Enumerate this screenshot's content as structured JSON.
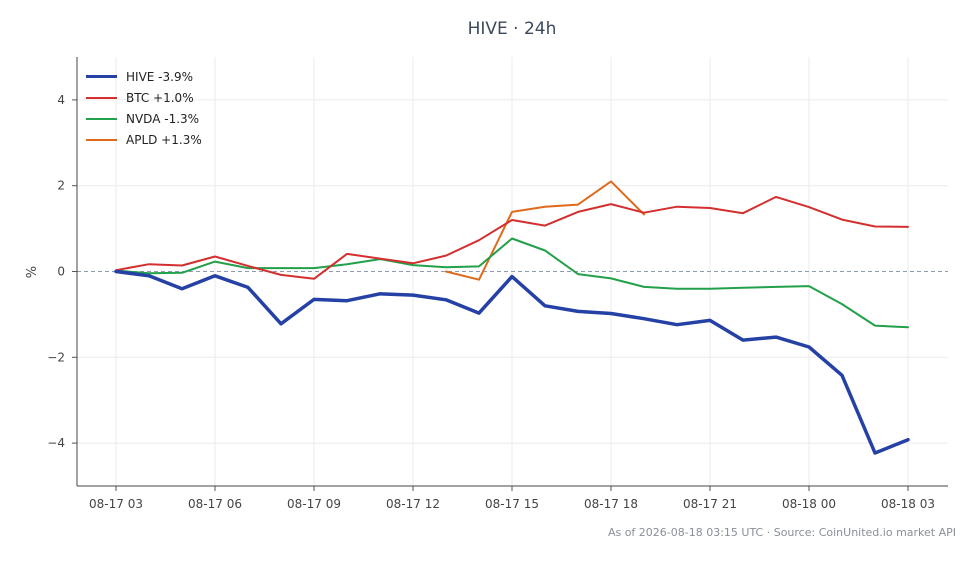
{
  "title": "HIVE · 24h",
  "footer": "As of 2026-08-18 03:15 UTC · Source: CoinUnited.io market API",
  "chart_data": {
    "type": "line",
    "title": "HIVE · 24h",
    "xlabel": "",
    "ylabel": "%",
    "x": [
      "08-17 03",
      "08-17 04",
      "08-17 05",
      "08-17 06",
      "08-17 07",
      "08-17 08",
      "08-17 09",
      "08-17 10",
      "08-17 11",
      "08-17 12",
      "08-17 13",
      "08-17 14",
      "08-17 15",
      "08-17 16",
      "08-17 17",
      "08-17 18",
      "08-17 19",
      "08-17 20",
      "08-17 21",
      "08-17 22",
      "08-17 23",
      "08-18 00",
      "08-18 01",
      "08-18 02",
      "08-18 03"
    ],
    "x_ticks": [
      "08-17 03",
      "08-17 06",
      "08-17 09",
      "08-17 12",
      "08-17 15",
      "08-17 18",
      "08-17 21",
      "08-18 00",
      "08-18 03"
    ],
    "y_ticks": [
      "4",
      "2",
      "0",
      "−2",
      "−4"
    ],
    "ylim": [
      -5,
      5
    ],
    "zero_line": true,
    "grid": true,
    "legend_position": "top-left",
    "series": [
      {
        "name": "HIVE -3.9%",
        "color": "#2541a5",
        "width": 3.5,
        "values": [
          0.0,
          -0.1,
          -0.4,
          -0.1,
          -0.37,
          -1.22,
          -0.65,
          -0.68,
          -0.52,
          -0.55,
          -0.66,
          -0.97,
          -0.12,
          -0.8,
          -0.93,
          -0.98,
          -1.1,
          -1.24,
          -1.14,
          -1.6,
          -1.53,
          -1.76,
          -2.42,
          -4.23,
          -3.92
        ]
      },
      {
        "name": "BTC +1.0%",
        "color": "#d32f2f",
        "width": 2,
        "values": [
          0.03,
          0.17,
          0.14,
          0.35,
          0.13,
          -0.08,
          -0.17,
          0.41,
          0.3,
          0.19,
          0.37,
          0.73,
          1.2,
          1.07,
          1.39,
          1.57,
          1.37,
          1.51,
          1.48,
          1.36,
          1.74,
          1.5,
          1.21,
          1.05,
          1.04
        ]
      },
      {
        "name": "NVDA -1.3%",
        "color": "#22a04a",
        "width": 2,
        "values": [
          0.02,
          -0.04,
          -0.03,
          0.23,
          0.08,
          0.08,
          0.08,
          0.17,
          0.29,
          0.15,
          0.1,
          0.12,
          0.77,
          0.49,
          -0.06,
          -0.16,
          -0.36,
          -0.4,
          -0.4,
          -0.38,
          -0.36,
          -0.34,
          -0.76,
          -1.26,
          -1.3
        ]
      },
      {
        "name": "APLD +1.3%",
        "color": "#e06a1b",
        "width": 2,
        "values": [
          null,
          null,
          null,
          null,
          null,
          null,
          null,
          null,
          null,
          null,
          0.0,
          -0.19,
          1.39,
          1.51,
          1.56,
          2.1,
          1.33,
          null,
          null,
          null,
          null,
          null,
          null,
          null,
          null
        ]
      }
    ]
  }
}
